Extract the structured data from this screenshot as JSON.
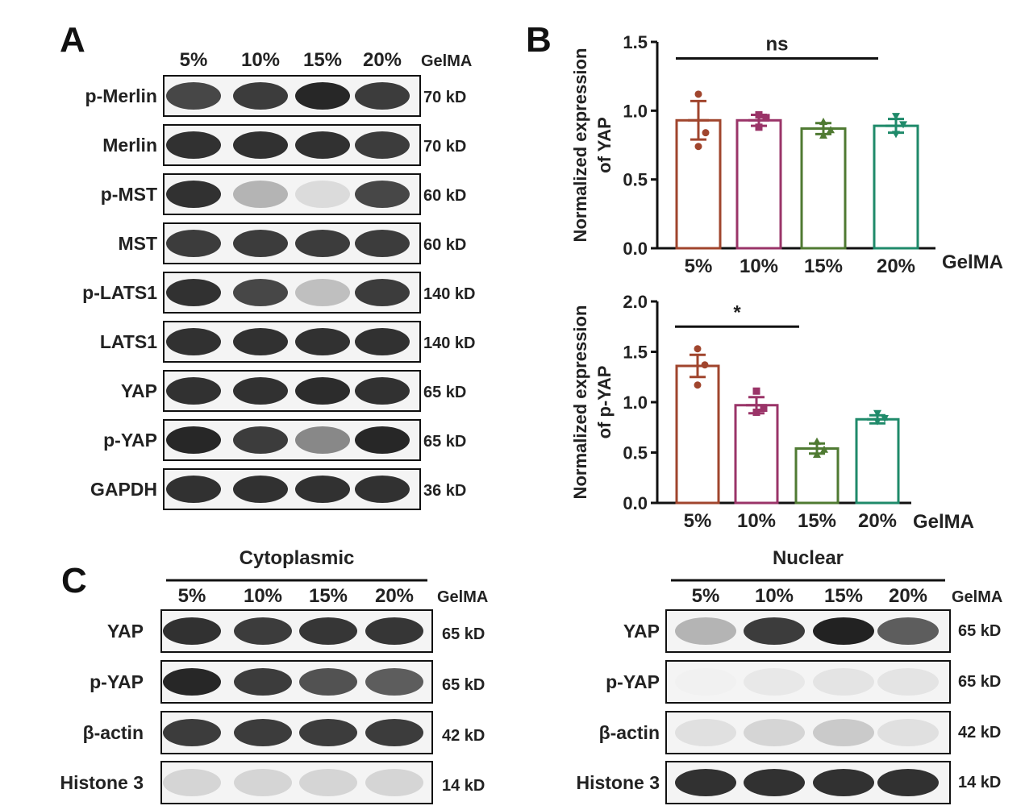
{
  "panels": {
    "a": "A",
    "b": "B",
    "c": "C"
  },
  "blot_a": {
    "lanes": [
      "5%",
      "10%",
      "15%",
      "20%"
    ],
    "lane_suffix": "GelMA",
    "rows": [
      {
        "label": "p-Merlin",
        "kd": "70 kD",
        "intensity": [
          0.8,
          0.85,
          0.95,
          0.85
        ]
      },
      {
        "label": "Merlin",
        "kd": "70 kD",
        "intensity": [
          0.9,
          0.9,
          0.9,
          0.85
        ]
      },
      {
        "label": "p-MST",
        "kd": "60 kD",
        "intensity": [
          0.9,
          0.3,
          0.12,
          0.8
        ]
      },
      {
        "label": "MST",
        "kd": "60 kD",
        "intensity": [
          0.85,
          0.85,
          0.85,
          0.85
        ]
      },
      {
        "label": "p-LATS1",
        "kd": "140 kD",
        "intensity": [
          0.9,
          0.8,
          0.25,
          0.85
        ]
      },
      {
        "label": "LATS1",
        "kd": "140 kD",
        "intensity": [
          0.9,
          0.9,
          0.9,
          0.9
        ]
      },
      {
        "label": "YAP",
        "kd": "65 kD",
        "intensity": [
          0.9,
          0.9,
          0.92,
          0.9
        ]
      },
      {
        "label": "p-YAP",
        "kd": "65 kD",
        "intensity": [
          0.95,
          0.85,
          0.5,
          0.95
        ]
      },
      {
        "label": "GAPDH",
        "kd": "36 kD",
        "intensity": [
          0.9,
          0.9,
          0.9,
          0.9
        ]
      }
    ]
  },
  "blot_c_cyto": {
    "title": "Cytoplasmic",
    "lanes": [
      "5%",
      "10%",
      "15%",
      "20%"
    ],
    "lane_suffix": "GelMA",
    "rows": [
      {
        "label": "YAP",
        "kd": "65 kD",
        "intensity": [
          0.9,
          0.85,
          0.88,
          0.88
        ]
      },
      {
        "label": "p-YAP",
        "kd": "65 kD",
        "intensity": [
          0.95,
          0.85,
          0.75,
          0.7
        ]
      },
      {
        "label": "β-actin",
        "kd": "42 kD",
        "intensity": [
          0.85,
          0.85,
          0.85,
          0.85
        ]
      },
      {
        "label": "Histone 3",
        "kd": "14 kD",
        "intensity": [
          0.15,
          0.15,
          0.15,
          0.15
        ]
      }
    ]
  },
  "blot_c_nuc": {
    "title": "Nuclear",
    "lanes": [
      "5%",
      "10%",
      "15%",
      "20%"
    ],
    "lane_suffix": "GelMA",
    "rows": [
      {
        "label": "YAP",
        "kd": "65 kD",
        "intensity": [
          0.3,
          0.85,
          0.97,
          0.7
        ]
      },
      {
        "label": "p-YAP",
        "kd": "65 kD",
        "intensity": [
          0.02,
          0.06,
          0.08,
          0.08
        ]
      },
      {
        "label": "β-actin",
        "kd": "42 kD",
        "intensity": [
          0.1,
          0.15,
          0.2,
          0.1
        ]
      },
      {
        "label": "Histone 3",
        "kd": "14 kD",
        "intensity": [
          0.9,
          0.9,
          0.9,
          0.9
        ]
      }
    ]
  },
  "colors": {
    "5%": "#a0452d",
    "10%": "#9a3468",
    "15%": "#4f7a32",
    "20%": "#1f8a6a"
  },
  "chart_data": [
    {
      "type": "bar",
      "categories": [
        "5%",
        "10%",
        "15%",
        "20%"
      ],
      "x_suffix": "GelMA",
      "ylabel_line1": "Normalized  expression",
      "ylabel_line2": "of YAP",
      "ylim": [
        0,
        1.5
      ],
      "yticks": [
        "0.0",
        "0.5",
        "1.0",
        "1.5"
      ],
      "values": [
        0.93,
        0.93,
        0.87,
        0.89
      ],
      "sem": [
        0.14,
        0.04,
        0.04,
        0.05
      ],
      "points": [
        [
          1.12,
          0.84,
          0.74
        ],
        [
          0.97,
          0.95,
          0.88
        ],
        [
          0.92,
          0.86,
          0.82
        ],
        [
          0.96,
          0.9,
          0.83
        ]
      ],
      "significance": {
        "label": "ns",
        "from": 0,
        "to": 3,
        "y": 1.38
      }
    },
    {
      "type": "bar",
      "categories": [
        "5%",
        "10%",
        "15%",
        "20%"
      ],
      "x_suffix": "GelMA",
      "ylabel_line1": "Normalized  expression",
      "ylabel_line2": "of p-YAP",
      "ylim": [
        0,
        2.0
      ],
      "yticks": [
        "0.0",
        "0.5",
        "1.0",
        "1.5",
        "2.0"
      ],
      "values": [
        1.36,
        0.97,
        0.54,
        0.83
      ],
      "sem": [
        0.11,
        0.08,
        0.05,
        0.04
      ],
      "points": [
        [
          1.53,
          1.37,
          1.17
        ],
        [
          1.11,
          0.94,
          0.9
        ],
        [
          0.61,
          0.53,
          0.48
        ],
        [
          0.89,
          0.84,
          0.81
        ]
      ],
      "significance": {
        "label": "*",
        "from": 0,
        "to": 2,
        "y": 1.75
      }
    }
  ]
}
